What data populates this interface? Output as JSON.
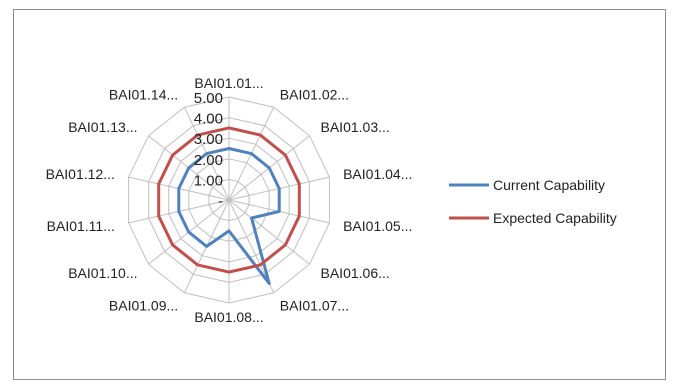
{
  "chart_data": {
    "type": "radar",
    "title": "",
    "categories": [
      "BAI01.01...",
      "BAI01.02...",
      "BAI01.03...",
      "BAI01.04...",
      "BAI01.05...",
      "BAI01.06...",
      "BAI01.07...",
      "BAI01.08...",
      "BAI01.09...",
      "BAI01.10...",
      "BAI01.11...",
      "BAI01.12...",
      "BAI01.13...",
      "BAI01.14..."
    ],
    "r_ticks": [
      "-",
      "1.00",
      "2.00",
      "3.00",
      "4.00",
      "5.00"
    ],
    "rlim": [
      0,
      5
    ],
    "grid": true,
    "legend_position": "right",
    "series": [
      {
        "name": "Current Capability",
        "color": "#4f81bd",
        "values": [
          2.5,
          2.5,
          2.5,
          2.5,
          2.5,
          1.4,
          4.5,
          1.5,
          2.5,
          2.5,
          2.5,
          2.5,
          2.5,
          2.5
        ]
      },
      {
        "name": "Expected Capability",
        "color": "#c0504d",
        "values": [
          3.5,
          3.5,
          3.5,
          3.5,
          3.5,
          3.5,
          3.5,
          3.5,
          3.5,
          3.5,
          3.5,
          3.5,
          3.5,
          3.5
        ]
      }
    ]
  }
}
